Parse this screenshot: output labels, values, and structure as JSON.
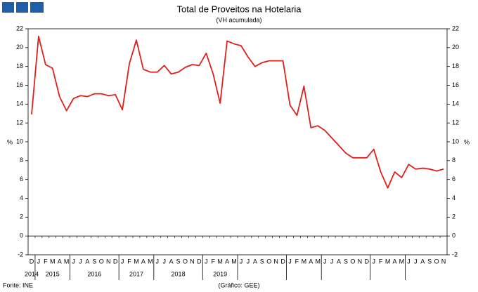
{
  "chart_data": {
    "type": "line",
    "title": "Total de Proveitos na Hotelaria",
    "subtitle": "(VH acumulada)",
    "y_label": "%",
    "y2_label": "%",
    "categories": [
      "D",
      "J",
      "F",
      "M",
      "A",
      "M",
      "J",
      "J",
      "A",
      "S",
      "O",
      "N",
      "D",
      "J",
      "F",
      "M",
      "A",
      "M",
      "J",
      "J",
      "A",
      "S",
      "O",
      "N",
      "D",
      "J",
      "F",
      "M",
      "A",
      "M",
      "J",
      "J",
      "A",
      "S",
      "O",
      "N",
      "D",
      "J",
      "F",
      "M",
      "A",
      "M",
      "J",
      "J",
      "A",
      "S",
      "O",
      "N",
      "D",
      "J",
      "F",
      "M",
      "A",
      "M",
      "J",
      "J",
      "A",
      "S",
      "O",
      "N"
    ],
    "years": [
      "2014",
      "2015",
      "2016",
      "2017",
      "2018",
      "2019"
    ],
    "series": [
      {
        "name": "Total de Proveitos",
        "color": "#e0201b",
        "values": [
          12.9,
          21.2,
          18.2,
          17.8,
          14.8,
          13.3,
          14.6,
          14.9,
          14.8,
          15.1,
          15.1,
          14.9,
          15.0,
          13.4,
          18.3,
          20.8,
          17.7,
          17.4,
          17.4,
          18.1,
          17.2,
          17.4,
          17.9,
          18.2,
          18.1,
          19.4,
          17.2,
          14.1,
          20.7,
          20.4,
          20.2,
          19.0,
          18.0,
          18.4,
          18.6,
          18.6,
          18.6,
          13.9,
          12.8,
          15.9,
          11.5,
          11.7,
          11.2,
          10.4,
          9.6,
          8.8,
          8.3,
          8.3,
          8.3,
          9.2,
          6.8,
          5.1,
          6.8,
          6.2,
          7.6,
          7.1,
          7.2,
          7.1,
          6.9,
          7.1
        ]
      }
    ],
    "ylim": [
      -2,
      22
    ],
    "yticks": [
      -2,
      0,
      2,
      4,
      6,
      8,
      10,
      12,
      14,
      16,
      18,
      20,
      22
    ],
    "y2lim": [
      -2,
      22
    ],
    "y2ticks": [
      -2,
      0,
      2,
      4,
      6,
      8,
      10,
      12,
      14,
      16,
      18,
      20,
      22
    ],
    "source": "Fonte: INE",
    "credit": "(Gráfico: GEE)"
  }
}
